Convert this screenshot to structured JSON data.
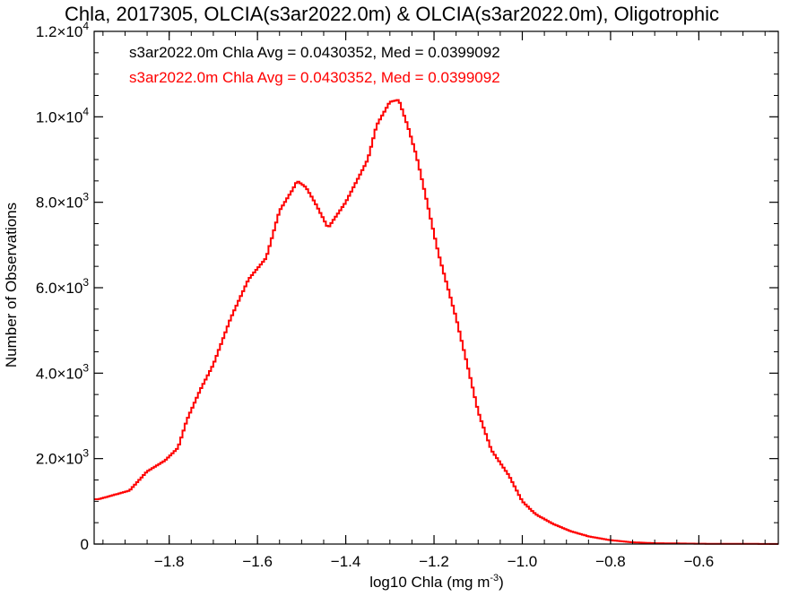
{
  "chart_data": {
    "type": "histogram",
    "title": "Chla, 2017305, OLCIA(s3ar2022.0m) & OLCIA(s3ar2022.0m), Oligotrophic",
    "xlabel": "log10 Chla (mg m",
    "xlabel_exp": "-3",
    "xlabel_end": ")",
    "ylabel": "Number of Observations",
    "xlim": [
      -1.97,
      -0.42
    ],
    "ylim": [
      0,
      12000
    ],
    "x_ticks": [
      {
        "value": -1.8,
        "label": "−1.8"
      },
      {
        "value": -1.6,
        "label": "−1.6"
      },
      {
        "value": -1.4,
        "label": "−1.4"
      },
      {
        "value": -1.2,
        "label": "−1.2"
      },
      {
        "value": -1.0,
        "label": "−1.0"
      },
      {
        "value": -0.8,
        "label": "−0.8"
      },
      {
        "value": -0.6,
        "label": "−0.6"
      }
    ],
    "y_ticks": [
      {
        "value": 0,
        "mantissa": "0",
        "exp": ""
      },
      {
        "value": 2000,
        "mantissa": "2.0×10",
        "exp": "3"
      },
      {
        "value": 4000,
        "mantissa": "4.0×10",
        "exp": "3"
      },
      {
        "value": 6000,
        "mantissa": "6.0×10",
        "exp": "3"
      },
      {
        "value": 8000,
        "mantissa": "8.0×10",
        "exp": "3"
      },
      {
        "value": 10000,
        "mantissa": "1.0×10",
        "exp": "4"
      },
      {
        "value": 12000,
        "mantissa": "1.2×10",
        "exp": "4"
      }
    ],
    "legend": [
      {
        "text": "s3ar2022.0m Chla Avg = 0.0430352, Med = 0.0399092",
        "color": "#000000"
      },
      {
        "text": "s3ar2022.0m Chla Avg = 0.0430352, Med = 0.0399092",
        "color": "#ff0000"
      }
    ],
    "series": [
      {
        "color": "#ff0000",
        "x": [
          -1.96,
          -1.89,
          -1.85,
          -1.81,
          -1.78,
          -1.76,
          -1.73,
          -1.7,
          -1.66,
          -1.62,
          -1.58,
          -1.55,
          -1.52,
          -1.51,
          -1.49,
          -1.47,
          -1.45,
          -1.44,
          -1.42,
          -1.4,
          -1.38,
          -1.35,
          -1.33,
          -1.3,
          -1.28,
          -1.26,
          -1.24,
          -1.22,
          -1.19,
          -1.15,
          -1.12,
          -1.1,
          -1.07,
          -1.03,
          -1.0,
          -0.97,
          -0.93,
          -0.89,
          -0.85,
          -0.8,
          -0.75,
          -0.7,
          -0.6,
          -0.5,
          -0.42
        ],
        "y": [
          1050,
          1250,
          1700,
          1950,
          2250,
          2900,
          3600,
          4200,
          5300,
          6200,
          6700,
          7800,
          8300,
          8500,
          8350,
          8000,
          7600,
          7400,
          7700,
          8000,
          8400,
          9000,
          9800,
          10350,
          10400,
          9800,
          9100,
          8200,
          6800,
          5300,
          4000,
          3100,
          2200,
          1600,
          1000,
          700,
          470,
          300,
          180,
          90,
          40,
          20,
          8,
          4,
          2
        ]
      }
    ]
  }
}
